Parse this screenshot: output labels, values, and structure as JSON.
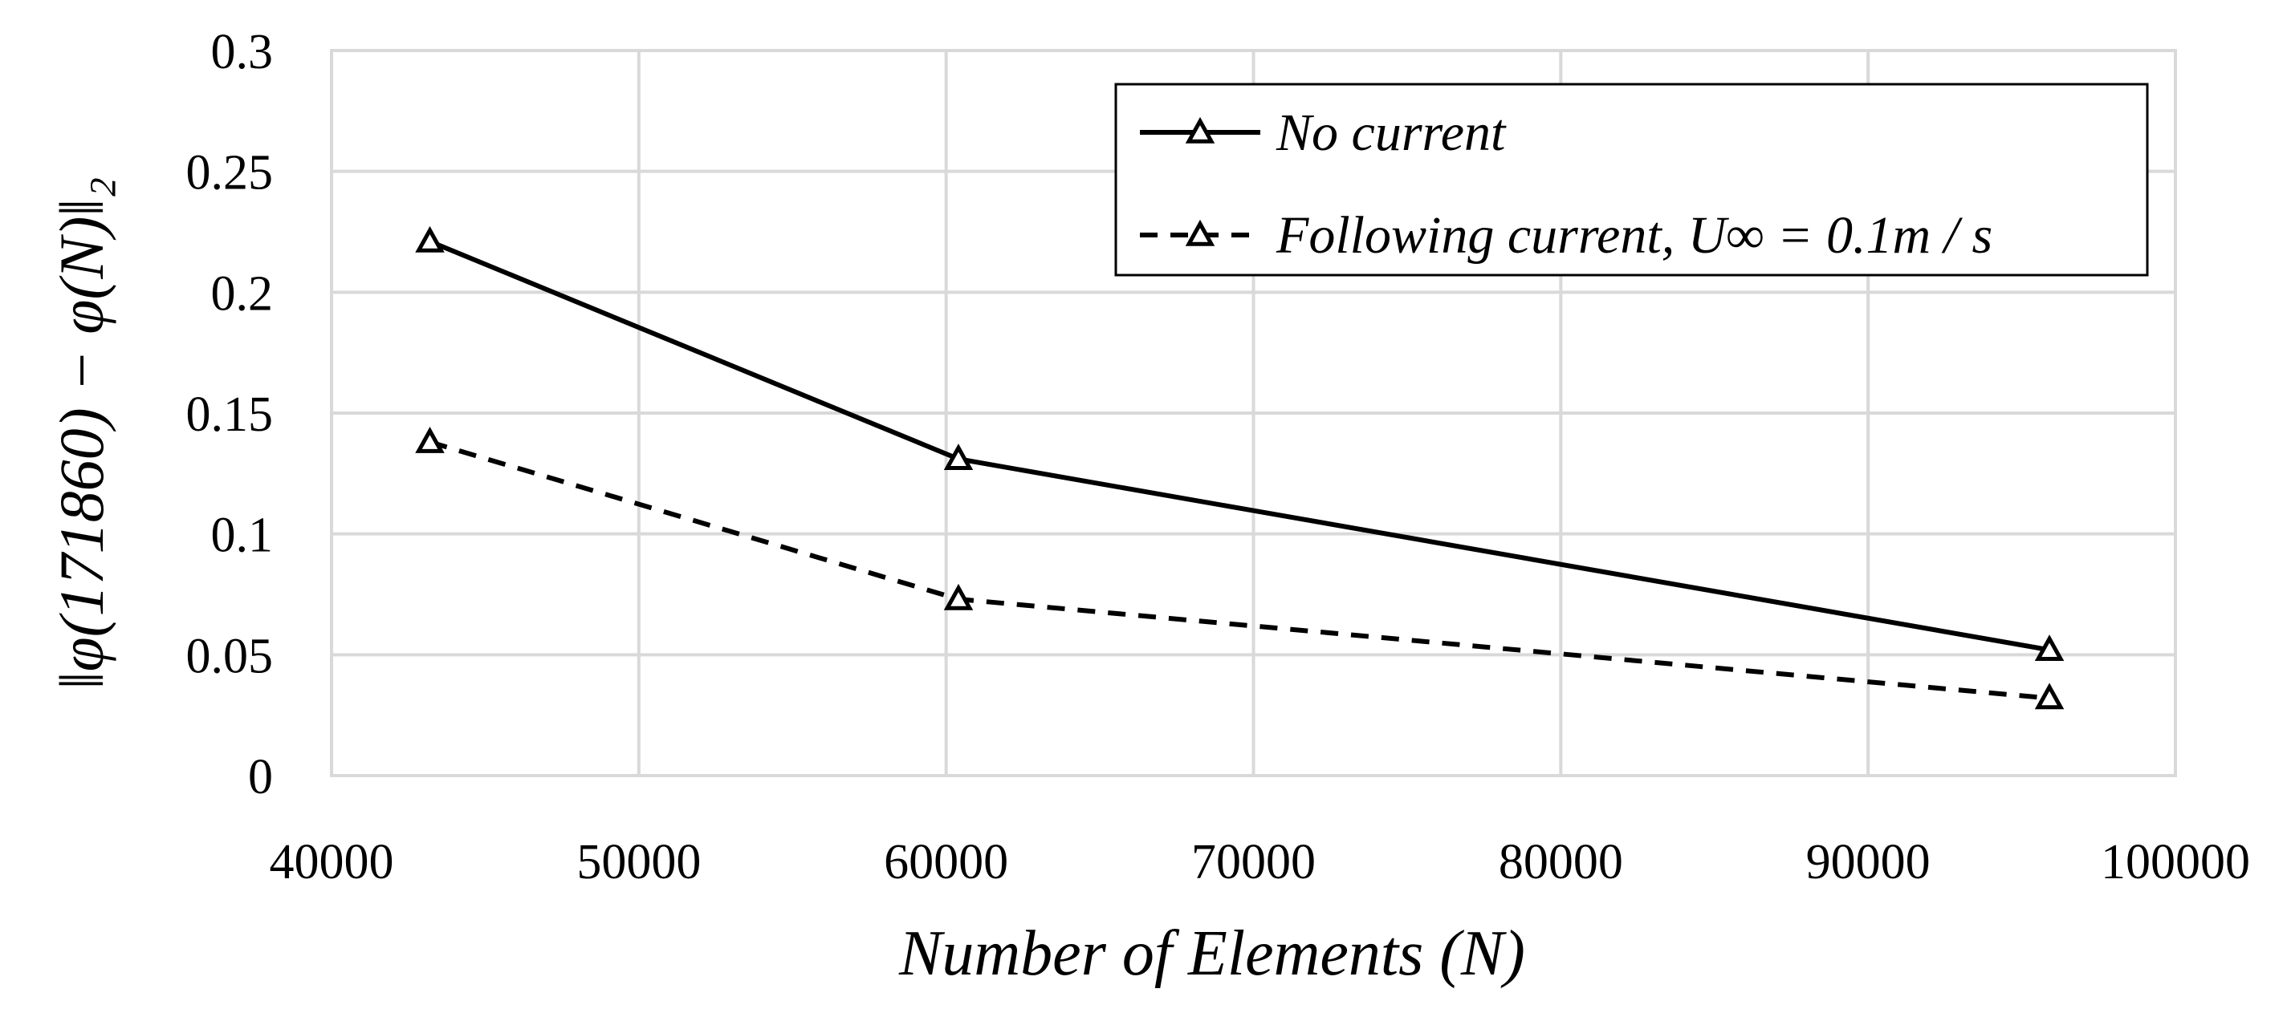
{
  "chart_data": {
    "type": "line",
    "xlabel": "Number of Elements (N)",
    "ylabel": "‖φ(171860) − φ(N)‖₂",
    "xlim": [
      40000,
      100000
    ],
    "ylim": [
      0,
      0.3
    ],
    "xticks": [
      40000,
      50000,
      60000,
      70000,
      80000,
      90000,
      100000
    ],
    "yticks": [
      0,
      0.05,
      0.1,
      0.15,
      0.2,
      0.25,
      0.3
    ],
    "xtick_labels": [
      "40000",
      "50000",
      "60000",
      "70000",
      "80000",
      "90000",
      "100000"
    ],
    "ytick_labels": [
      "0",
      "0.05",
      "0.1",
      "0.15",
      "0.2",
      "0.25",
      "0.3"
    ],
    "grid": true,
    "legend_position": "top-right",
    "series": [
      {
        "name": "No current",
        "style": "solid",
        "marker": "triangle",
        "x": [
          43200,
          60400,
          95900
        ],
        "y": [
          0.221,
          0.131,
          0.052
        ]
      },
      {
        "name": "Following current, U∞ = 0.1m / s",
        "style": "dashed",
        "marker": "triangle",
        "x": [
          43200,
          60400,
          95900
        ],
        "y": [
          0.138,
          0.073,
          0.032
        ]
      }
    ],
    "colors": {
      "line": "#000000",
      "grid": "#d9d9d9",
      "background": "#ffffff"
    }
  }
}
